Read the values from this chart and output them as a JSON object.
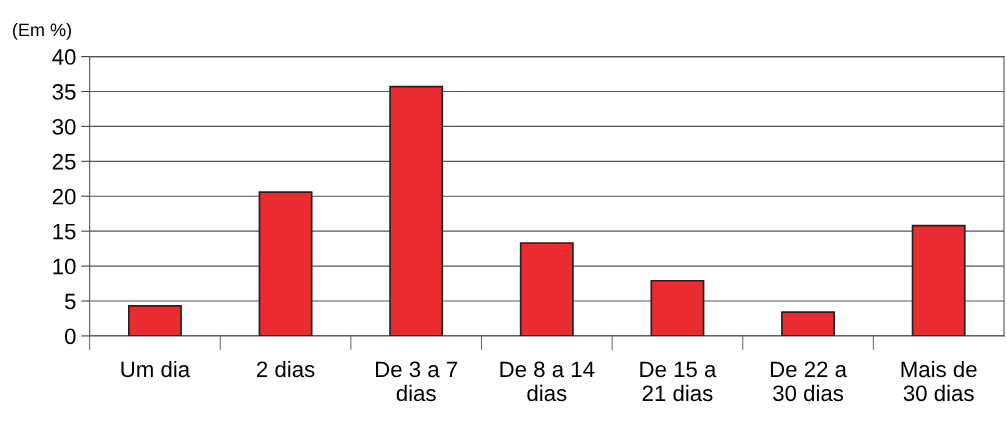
{
  "chart_data": {
    "type": "bar",
    "ylabel": "(Em %)",
    "categories": [
      "Um dia",
      "2 dias",
      "De 3 a 7\ndias",
      "De 8 a 14\ndias",
      "De 15 a\n21 dias",
      "De 22 a\n30 dias",
      "Mais de\n30 dias"
    ],
    "values": [
      4.3,
      20.6,
      35.7,
      13.3,
      7.9,
      3.4,
      15.8
    ],
    "color": "#ea2b30",
    "ylim": [
      0,
      40
    ],
    "yticks": [
      0,
      5,
      10,
      15,
      20,
      25,
      30,
      35,
      40
    ],
    "grid": "y",
    "legend": false
  }
}
